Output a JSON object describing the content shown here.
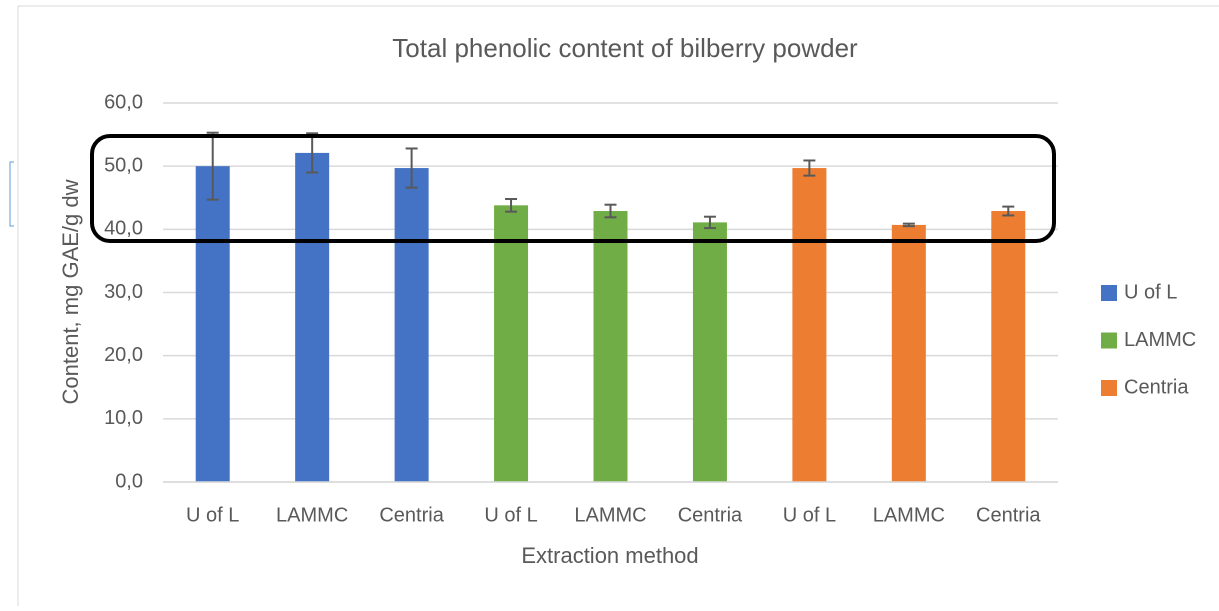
{
  "chart_data": {
    "type": "bar",
    "title": "Total phenolic content of bilberry powder",
    "x_label": "Extraction method",
    "y_label": "Content, mg GAE/g dw",
    "categories": [
      "U of L",
      "LAMMC",
      "Centria",
      "U of L",
      "LAMMC",
      "Centria",
      "U of L",
      "LAMMC",
      "Centria"
    ],
    "series": [
      {
        "name": "U of L",
        "color": "#4472c4",
        "values": [
          50.0,
          52.1,
          49.7,
          null,
          null,
          null,
          null,
          null,
          null
        ],
        "errors": [
          5.3,
          3.1,
          3.1,
          null,
          null,
          null,
          null,
          null,
          null
        ]
      },
      {
        "name": "LAMMC",
        "color": "#70ad47",
        "values": [
          null,
          null,
          null,
          43.8,
          42.9,
          41.1,
          null,
          null,
          null
        ],
        "errors": [
          null,
          null,
          null,
          1.0,
          1.0,
          0.9,
          null,
          null,
          null
        ]
      },
      {
        "name": "Centria",
        "color": "#ed7d31",
        "values": [
          null,
          null,
          null,
          null,
          null,
          null,
          49.7,
          40.7,
          42.9
        ],
        "errors": [
          null,
          null,
          null,
          null,
          null,
          null,
          1.2,
          0.2,
          0.7
        ]
      }
    ],
    "ylim": [
      0,
      60
    ],
    "yticks": [
      {
        "value": 0,
        "label": "0,0"
      },
      {
        "value": 10,
        "label": "10,0"
      },
      {
        "value": 20,
        "label": "20,0"
      },
      {
        "value": 30,
        "label": "30,0"
      },
      {
        "value": 40,
        "label": "40,0"
      },
      {
        "value": 50,
        "label": "50,0"
      },
      {
        "value": 60,
        "label": "60,0"
      }
    ],
    "grid": true,
    "legend": "right"
  }
}
